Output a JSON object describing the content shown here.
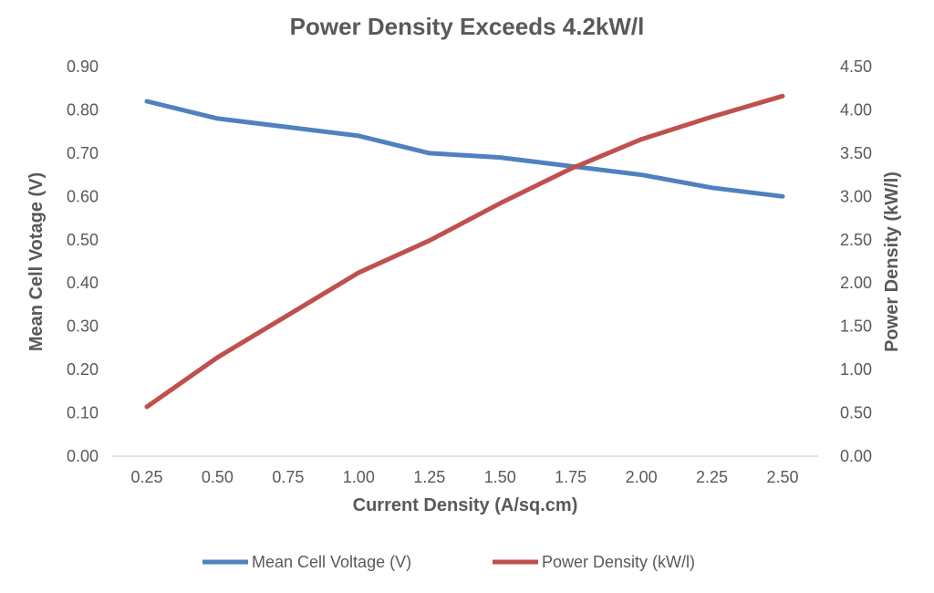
{
  "chart_data": {
    "type": "line",
    "title": "Power Density Exceeds 4.2kW/l",
    "xlabel": "Current Density (A/sq.cm)",
    "ylabel": "Mean Cell Votage (V)",
    "y2label": "Power Density (kW/l)",
    "x": [
      0.25,
      0.5,
      0.75,
      1.0,
      1.25,
      1.5,
      1.75,
      2.0,
      2.25,
      2.5
    ],
    "x_tick_labels": [
      "0.25",
      "0.50",
      "0.75",
      "1.00",
      "1.25",
      "1.50",
      "1.75",
      "2.00",
      "2.25",
      "2.50"
    ],
    "ylim": [
      0,
      0.9
    ],
    "y_ticks": [
      "0.00",
      "0.10",
      "0.20",
      "0.30",
      "0.40",
      "0.50",
      "0.60",
      "0.70",
      "0.80",
      "0.90"
    ],
    "y2lim": [
      0,
      4.5
    ],
    "y2_ticks": [
      "0.00",
      "0.50",
      "1.00",
      "1.50",
      "2.00",
      "2.50",
      "3.00",
      "3.50",
      "4.00",
      "4.50"
    ],
    "grid": false,
    "legend_position": "bottom",
    "series": [
      {
        "name": "Mean Cell Voltage (V)",
        "axis": "left",
        "color": "#4F81BD",
        "values": [
          0.82,
          0.78,
          0.76,
          0.74,
          0.7,
          0.69,
          0.67,
          0.65,
          0.62,
          0.6
        ]
      },
      {
        "name": "Power Density (kW/l)",
        "axis": "right",
        "color": "#C0504D",
        "values": [
          0.57,
          1.14,
          1.63,
          2.12,
          2.49,
          2.92,
          3.32,
          3.66,
          3.92,
          4.16
        ]
      }
    ]
  }
}
